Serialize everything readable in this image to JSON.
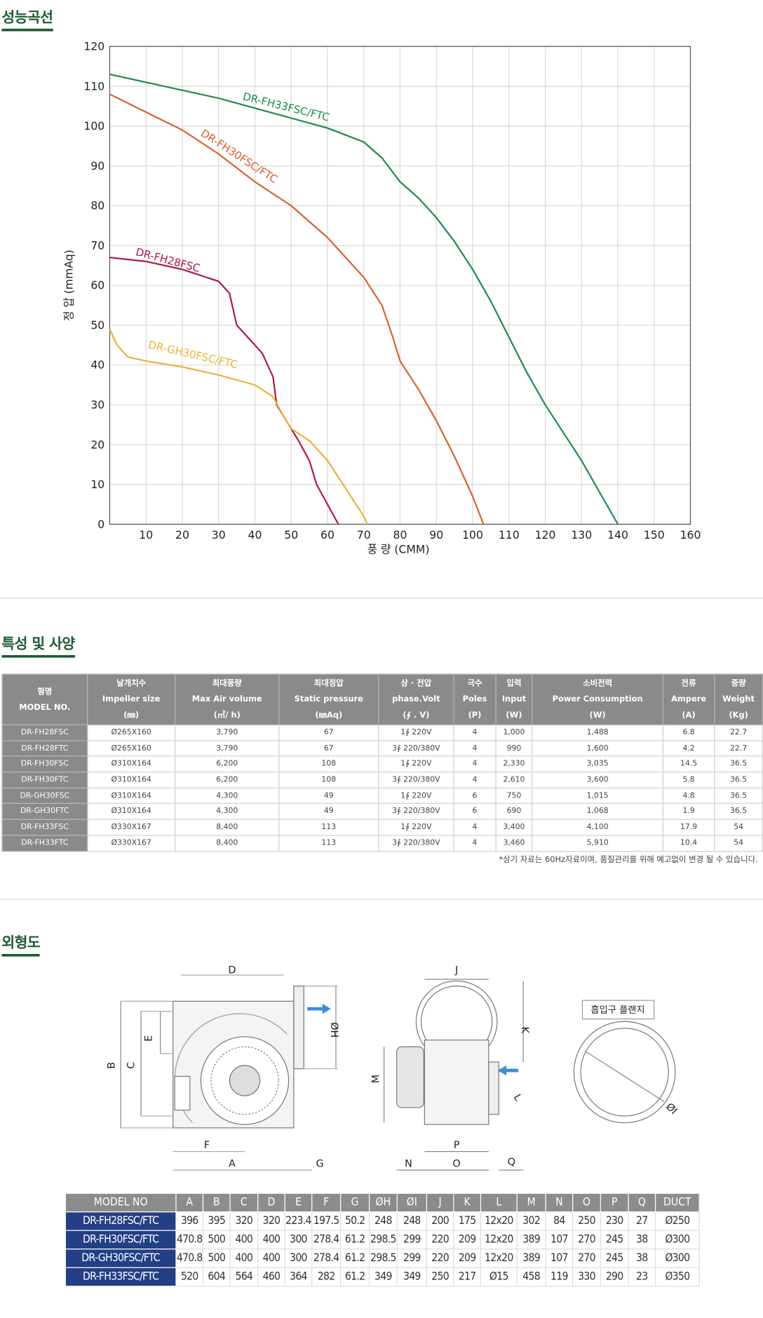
{
  "sections": {
    "performance": "성능곡선",
    "spec": "특성 및 사양",
    "outline": "외형도"
  },
  "chart_data": {
    "type": "line",
    "xlabel": "풍 량 (CMM)",
    "ylabel": "정 압 (mmAq)",
    "xlim": [
      0,
      160
    ],
    "ylim": [
      0,
      120
    ],
    "xticks": [
      10,
      20,
      30,
      40,
      50,
      60,
      70,
      80,
      90,
      100,
      110,
      120,
      130,
      140,
      150,
      160
    ],
    "yticks": [
      0,
      10,
      20,
      30,
      40,
      50,
      60,
      70,
      80,
      90,
      100,
      110,
      120
    ],
    "grid": true,
    "series": [
      {
        "name": "DR-FH33FSC/FTC",
        "color": "#1a8a4a",
        "x": [
          0,
          10,
          20,
          30,
          40,
          50,
          60,
          70,
          75,
          80,
          85,
          90,
          95,
          100,
          105,
          110,
          115,
          120,
          125,
          130,
          135,
          140
        ],
        "values": [
          113,
          111,
          109,
          107,
          104.5,
          102,
          99.5,
          96,
          92,
          86,
          82,
          77,
          71,
          64,
          56,
          47,
          38,
          30,
          23,
          16,
          8,
          0
        ]
      },
      {
        "name": "DR-FH30FSC/FTC",
        "color": "#d9602a",
        "x": [
          0,
          10,
          20,
          30,
          40,
          50,
          60,
          70,
          75,
          78,
          80,
          85,
          90,
          95,
          100,
          103
        ],
        "values": [
          108,
          103.5,
          99,
          93,
          86,
          80,
          72,
          62,
          55,
          47,
          41,
          34,
          26,
          17,
          7,
          0
        ]
      },
      {
        "name": "DR-FH28FSC",
        "color": "#b0173a",
        "x": [
          0,
          10,
          20,
          30,
          33,
          35,
          38,
          42,
          45,
          46,
          48,
          52,
          55,
          57,
          60,
          63
        ],
        "values": [
          67,
          66,
          64,
          61,
          58,
          50,
          47,
          43,
          37,
          30,
          27,
          21,
          16,
          10,
          5,
          0
        ]
      },
      {
        "name": "DR-GH30FSC/FTC",
        "color": "#e8b23a",
        "x": [
          0,
          2,
          5,
          10,
          20,
          30,
          40,
          45,
          48,
          50,
          55,
          60,
          65,
          70,
          71
        ],
        "values": [
          49,
          45,
          42,
          41,
          39.5,
          37.5,
          35,
          32,
          27,
          24,
          21,
          16,
          9,
          2,
          0
        ]
      }
    ]
  },
  "spec_table": {
    "headers": [
      [
        "형명",
        "MODEL NO."
      ],
      [
        "날개치수",
        "Impeller size",
        "(㎜)"
      ],
      [
        "최대풍량",
        "Max Air volume",
        "(㎥/ h)"
      ],
      [
        "최대정압",
        "Static pressure",
        "(㎜Aq)"
      ],
      [
        "상 · 전압",
        "phase.Volt",
        "(∮ . V)"
      ],
      [
        "극수",
        "Poles",
        "(P)"
      ],
      [
        "입력",
        "Input",
        "(W)"
      ],
      [
        "소비전력",
        "Power Consumption",
        "(W)"
      ],
      [
        "전류",
        "Ampere",
        "(A)"
      ],
      [
        "중량",
        "Weight",
        "(Kg)"
      ]
    ],
    "rows": [
      [
        "DR-FH28FSC",
        "Ø265X160",
        "3,790",
        "67",
        "1∮ 220V",
        "4",
        "1,000",
        "1,488",
        "6.8",
        "22.7"
      ],
      [
        "DR-FH28FTC",
        "Ø265X160",
        "3,790",
        "67",
        "3∮ 220/380V",
        "4",
        "990",
        "1,600",
        "4.2",
        "22.7"
      ],
      [
        "DR-FH30FSC",
        "Ø310X164",
        "6,200",
        "108",
        "1∮ 220V",
        "4",
        "2,330",
        "3,035",
        "14.5",
        "36.5"
      ],
      [
        "DR-FH30FTC",
        "Ø310X164",
        "6,200",
        "108",
        "3∮ 220/380V",
        "4",
        "2,610",
        "3,600",
        "5.8",
        "36.5"
      ],
      [
        "DR-GH30FSC",
        "Ø310X164",
        "4,300",
        "49",
        "1∮ 220V",
        "6",
        "750",
        "1,015",
        "4.8",
        "36.5"
      ],
      [
        "DR-GH30FTC",
        "Ø310X164",
        "4,300",
        "49",
        "3∮ 220/380V",
        "6",
        "690",
        "1,068",
        "1.9",
        "36.5"
      ],
      [
        "DR-FH33FSC",
        "Ø330X167",
        "8,400",
        "113",
        "1∮ 220V",
        "4",
        "3,400",
        "4,100",
        "17.9",
        "54"
      ],
      [
        "DR-FH33FTC",
        "Ø330X167",
        "8,400",
        "113",
        "3∮ 220/380V",
        "4",
        "3,460",
        "5,910",
        "10.4",
        "54"
      ]
    ],
    "note": "*상기 자료는 60Hz자료이며, 품질관리를 위해 예고없이 변경 될 수 있습니다."
  },
  "diagram": {
    "labels": [
      "D",
      "E",
      "C",
      "B",
      "ØH",
      "F",
      "A",
      "G",
      "J",
      "K",
      "M",
      "L",
      "N",
      "P",
      "O",
      "Q",
      "ØI"
    ],
    "flange_title": "흡입구 플랜지"
  },
  "dimension_table": {
    "headers": [
      "MODEL NO",
      "A",
      "B",
      "C",
      "D",
      "E",
      "F",
      "G",
      "ØH",
      "ØI",
      "J",
      "K",
      "L",
      "M",
      "N",
      "O",
      "P",
      "Q",
      "DUCT"
    ],
    "rows": [
      [
        "DR-FH28FSC/FTC",
        "396",
        "395",
        "320",
        "320",
        "223.4",
        "197.5",
        "50.2",
        "248",
        "248",
        "200",
        "175",
        "12x20",
        "302",
        "84",
        "250",
        "230",
        "27",
        "Ø250"
      ],
      [
        "DR-FH30FSC/FTC",
        "470.8",
        "500",
        "400",
        "400",
        "300",
        "278.4",
        "61.2",
        "298.5",
        "299",
        "220",
        "209",
        "12x20",
        "389",
        "107",
        "270",
        "245",
        "38",
        "Ø300"
      ],
      [
        "DR-GH30FSC/FTC",
        "470.8",
        "500",
        "400",
        "400",
        "300",
        "278.4",
        "61.2",
        "298.5",
        "299",
        "220",
        "209",
        "12x20",
        "389",
        "107",
        "270",
        "245",
        "38",
        "Ø300"
      ],
      [
        "DR-FH33FSC/FTC",
        "520",
        "604",
        "564",
        "460",
        "364",
        "282",
        "61.2",
        "349",
        "349",
        "250",
        "217",
        "Ø15",
        "458",
        "119",
        "330",
        "290",
        "23",
        "Ø350"
      ]
    ]
  }
}
